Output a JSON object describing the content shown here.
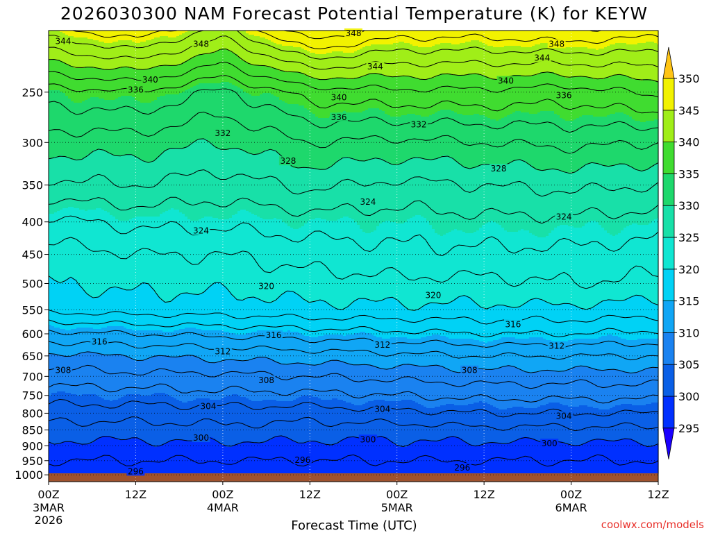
{
  "chart_data": {
    "type": "heatmap",
    "title": "2026030300 NAM Forecast Potential Temperature (K) for KEYW",
    "xlabel": "Forecast Time (UTC)",
    "ylabel": "",
    "credit": "coolwx.com/models",
    "x_ticks": [
      {
        "hour": 0,
        "label": "00Z",
        "date": "3MAR",
        "year": "2026"
      },
      {
        "hour": 12,
        "label": "12Z",
        "date": "",
        "year": ""
      },
      {
        "hour": 24,
        "label": "00Z",
        "date": "4MAR",
        "year": ""
      },
      {
        "hour": 36,
        "label": "12Z",
        "date": "",
        "year": ""
      },
      {
        "hour": 48,
        "label": "00Z",
        "date": "5MAR",
        "year": ""
      },
      {
        "hour": 60,
        "label": "12Z",
        "date": "",
        "year": ""
      },
      {
        "hour": 72,
        "label": "00Z",
        "date": "6MAR",
        "year": ""
      },
      {
        "hour": 84,
        "label": "12Z",
        "date": "",
        "year": ""
      }
    ],
    "xlim": [
      0,
      84
    ],
    "y_ticks": [
      250,
      300,
      350,
      400,
      450,
      500,
      550,
      600,
      650,
      700,
      750,
      800,
      850,
      900,
      950,
      1000
    ],
    "ylim": [
      1025,
      200
    ],
    "y_scale": "log",
    "grid": "dotted",
    "colorbar": {
      "levels": [
        295,
        300,
        305,
        310,
        315,
        320,
        325,
        330,
        335,
        340,
        345,
        350
      ],
      "colors": [
        "#1a00ff",
        "#0030ff",
        "#0a5fe6",
        "#1a82f0",
        "#10a6f5",
        "#00d2f5",
        "#10e6d2",
        "#18e0a8",
        "#1ed86c",
        "#40dc30",
        "#a0ee18",
        "#f2f200",
        "#ffc414"
      ]
    },
    "surface_color": "#a0522d",
    "series": [
      {
        "hour": 0,
        "theta": [
          [
            1000,
            296.5
          ],
          [
            950,
            298.0
          ],
          [
            900,
            299.5
          ],
          [
            850,
            301.0
          ],
          [
            800,
            303.0
          ],
          [
            750,
            305.0
          ],
          [
            700,
            307.0
          ],
          [
            650,
            309.5
          ],
          [
            600,
            313.5
          ],
          [
            550,
            318.5
          ],
          [
            500,
            320.0
          ],
          [
            450,
            321.0
          ],
          [
            400,
            323.5
          ],
          [
            350,
            327.5
          ],
          [
            300,
            331.0
          ],
          [
            250,
            335.0
          ],
          [
            210,
            343.0
          ]
        ]
      },
      {
        "hour": 12,
        "theta": [
          [
            1000,
            296.5
          ],
          [
            950,
            298.0
          ],
          [
            900,
            299.5
          ],
          [
            850,
            301.0
          ],
          [
            800,
            303.0
          ],
          [
            750,
            305.0
          ],
          [
            700,
            307.5
          ],
          [
            650,
            310.0
          ],
          [
            600,
            314.0
          ],
          [
            550,
            319.0
          ],
          [
            500,
            320.5
          ],
          [
            450,
            322.0
          ],
          [
            400,
            324.5
          ],
          [
            350,
            328.0
          ],
          [
            300,
            331.0
          ],
          [
            250,
            336.0
          ],
          [
            210,
            345.0
          ]
        ]
      },
      {
        "hour": 24,
        "theta": [
          [
            1000,
            296.5
          ],
          [
            950,
            298.0
          ],
          [
            900,
            299.5
          ],
          [
            850,
            301.5
          ],
          [
            800,
            303.0
          ],
          [
            750,
            305.5
          ],
          [
            700,
            307.5
          ],
          [
            650,
            310.5
          ],
          [
            600,
            314.5
          ],
          [
            550,
            319.0
          ],
          [
            500,
            320.5
          ],
          [
            450,
            322.0
          ],
          [
            400,
            324.5
          ],
          [
            350,
            327.0
          ],
          [
            300,
            330.0
          ],
          [
            250,
            333.5
          ],
          [
            210,
            341.0
          ]
        ]
      },
      {
        "hour": 36,
        "theta": [
          [
            1000,
            296.5
          ],
          [
            950,
            298.0
          ],
          [
            900,
            299.5
          ],
          [
            850,
            301.0
          ],
          [
            800,
            303.0
          ],
          [
            750,
            305.5
          ],
          [
            700,
            308.0
          ],
          [
            650,
            311.0
          ],
          [
            600,
            315.0
          ],
          [
            550,
            319.5
          ],
          [
            500,
            321.0
          ],
          [
            450,
            323.0
          ],
          [
            400,
            325.0
          ],
          [
            350,
            328.5
          ],
          [
            300,
            332.0
          ],
          [
            250,
            337.0
          ],
          [
            210,
            347.0
          ]
        ]
      },
      {
        "hour": 48,
        "theta": [
          [
            1000,
            296.5
          ],
          [
            950,
            298.0
          ],
          [
            900,
            299.5
          ],
          [
            850,
            301.0
          ],
          [
            800,
            303.5
          ],
          [
            750,
            306.0
          ],
          [
            700,
            308.5
          ],
          [
            650,
            311.5
          ],
          [
            600,
            315.5
          ],
          [
            550,
            319.5
          ],
          [
            500,
            321.5
          ],
          [
            450,
            323.5
          ],
          [
            400,
            325.0
          ],
          [
            350,
            327.5
          ],
          [
            300,
            331.5
          ],
          [
            250,
            337.5
          ],
          [
            210,
            345.0
          ]
        ]
      },
      {
        "hour": 60,
        "theta": [
          [
            1000,
            296.5
          ],
          [
            950,
            298.0
          ],
          [
            900,
            299.5
          ],
          [
            850,
            301.5
          ],
          [
            800,
            304.0
          ],
          [
            750,
            306.5
          ],
          [
            700,
            309.0
          ],
          [
            650,
            312.0
          ],
          [
            600,
            316.0
          ],
          [
            550,
            319.5
          ],
          [
            500,
            321.5
          ],
          [
            450,
            323.5
          ],
          [
            400,
            325.5
          ],
          [
            350,
            328.0
          ],
          [
            300,
            332.0
          ],
          [
            250,
            337.5
          ],
          [
            210,
            345.0
          ]
        ]
      },
      {
        "hour": 72,
        "theta": [
          [
            1000,
            296.5
          ],
          [
            950,
            298.0
          ],
          [
            900,
            299.5
          ],
          [
            850,
            301.5
          ],
          [
            800,
            304.0
          ],
          [
            750,
            306.5
          ],
          [
            700,
            309.0
          ],
          [
            650,
            312.0
          ],
          [
            600,
            316.0
          ],
          [
            550,
            319.5
          ],
          [
            500,
            322.0
          ],
          [
            450,
            323.5
          ],
          [
            400,
            325.5
          ],
          [
            350,
            328.5
          ],
          [
            300,
            332.5
          ],
          [
            250,
            337.0
          ],
          [
            210,
            345.5
          ]
        ]
      },
      {
        "hour": 84,
        "theta": [
          [
            1000,
            296.5
          ],
          [
            950,
            298.0
          ],
          [
            900,
            299.5
          ],
          [
            850,
            301.5
          ],
          [
            800,
            304.0
          ],
          [
            750,
            306.5
          ],
          [
            700,
            309.0
          ],
          [
            650,
            312.0
          ],
          [
            600,
            315.5
          ],
          [
            550,
            319.0
          ],
          [
            500,
            321.5
          ],
          [
            450,
            323.0
          ],
          [
            400,
            325.0
          ],
          [
            350,
            328.0
          ],
          [
            300,
            332.0
          ],
          [
            250,
            338.5
          ],
          [
            210,
            345.0
          ]
        ]
      }
    ],
    "contour_levels": [
      296,
      298,
      300,
      302,
      304,
      306,
      308,
      310,
      312,
      314,
      316,
      318,
      320,
      322,
      324,
      326,
      328,
      330,
      332,
      334,
      336,
      338,
      340,
      342,
      344,
      346,
      348
    ],
    "contour_labels": [
      {
        "value": 296,
        "hour": 12,
        "p": 988
      },
      {
        "value": 296,
        "hour": 35,
        "p": 948
      },
      {
        "value": 296,
        "hour": 57,
        "p": 975
      },
      {
        "value": 300,
        "hour": 21,
        "p": 875
      },
      {
        "value": 300,
        "hour": 44,
        "p": 880
      },
      {
        "value": 300,
        "hour": 69,
        "p": 893
      },
      {
        "value": 304,
        "hour": 22,
        "p": 780
      },
      {
        "value": 304,
        "hour": 46,
        "p": 788
      },
      {
        "value": 304,
        "hour": 71,
        "p": 808
      },
      {
        "value": 308,
        "hour": 2,
        "p": 685
      },
      {
        "value": 308,
        "hour": 30,
        "p": 710
      },
      {
        "value": 308,
        "hour": 58,
        "p": 685
      },
      {
        "value": 312,
        "hour": 24,
        "p": 640
      },
      {
        "value": 312,
        "hour": 46,
        "p": 625
      },
      {
        "value": 312,
        "hour": 70,
        "p": 627
      },
      {
        "value": 316,
        "hour": 7,
        "p": 618
      },
      {
        "value": 316,
        "hour": 31,
        "p": 603
      },
      {
        "value": 316,
        "hour": 64,
        "p": 580
      },
      {
        "value": 320,
        "hour": 30,
        "p": 505
      },
      {
        "value": 320,
        "hour": 53,
        "p": 522
      },
      {
        "value": 324,
        "hour": 21,
        "p": 413
      },
      {
        "value": 324,
        "hour": 44,
        "p": 372
      },
      {
        "value": 324,
        "hour": 71,
        "p": 393
      },
      {
        "value": 328,
        "hour": 33,
        "p": 321
      },
      {
        "value": 328,
        "hour": 62,
        "p": 330
      },
      {
        "value": 332,
        "hour": 24,
        "p": 290
      },
      {
        "value": 332,
        "hour": 51,
        "p": 281
      },
      {
        "value": 336,
        "hour": 12,
        "p": 248
      },
      {
        "value": 336,
        "hour": 40,
        "p": 274
      },
      {
        "value": 336,
        "hour": 71,
        "p": 253
      },
      {
        "value": 340,
        "hour": 14,
        "p": 239
      },
      {
        "value": 340,
        "hour": 40,
        "p": 255
      },
      {
        "value": 340,
        "hour": 63,
        "p": 240
      },
      {
        "value": 344,
        "hour": 2,
        "p": 208
      },
      {
        "value": 344,
        "hour": 45,
        "p": 228
      },
      {
        "value": 344,
        "hour": 68,
        "p": 221
      },
      {
        "value": 348,
        "hour": 21,
        "p": 210
      },
      {
        "value": 348,
        "hour": 42,
        "p": 202
      },
      {
        "value": 348,
        "hour": 70,
        "p": 210
      }
    ]
  }
}
